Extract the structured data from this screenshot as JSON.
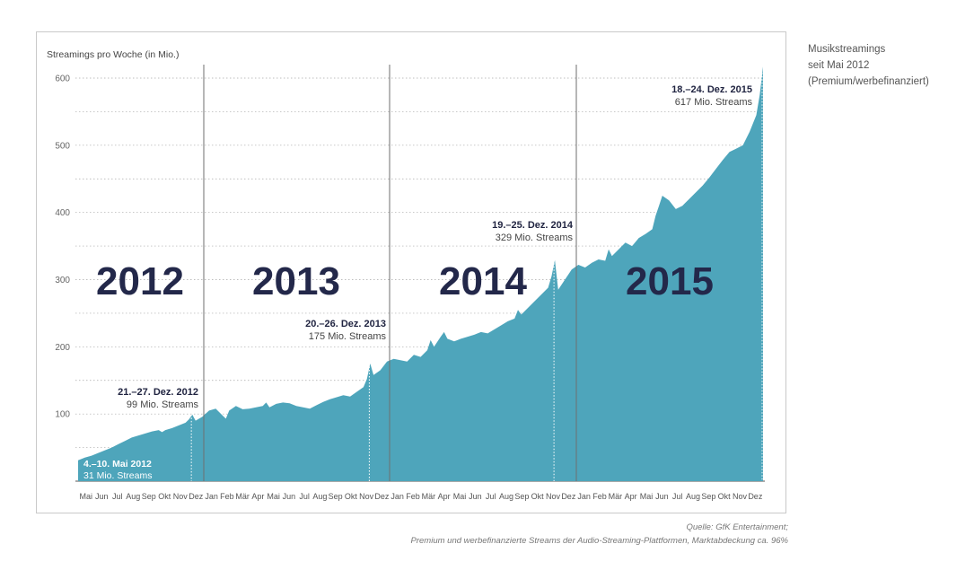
{
  "side_title": [
    "Musikstreamings",
    "seit Mai 2012",
    "(Premium/werbefinanziert)"
  ],
  "source": [
    "Quelle: GfK Entertainment;",
    "Premium und werbefinanzierte Streams der Audio-Streaming-Plattformen, Marktabdeckung ca. 96%"
  ],
  "colors": {
    "area": "#4ea5bb",
    "year_label": "#23284a",
    "frame": "#c9c9c9"
  },
  "chart_data": {
    "type": "area",
    "ylabel": "Streamings pro Woche (in Mio.)",
    "ylim": [
      0,
      620
    ],
    "yticks": [
      100,
      200,
      300,
      400,
      500,
      600
    ],
    "grid": "dotted horizontal",
    "years": [
      "2012",
      "2013",
      "2014",
      "2015"
    ],
    "month_labels": [
      [
        "Mai",
        "Jun",
        "Jul",
        "Aug",
        "Sep",
        "Okt",
        "Nov",
        "Dez"
      ],
      [
        "Jan",
        "Feb",
        "Mär",
        "Apr",
        "Mai",
        "Jun",
        "Jul",
        "Aug",
        "Sep",
        "Okt",
        "Nov",
        "Dez"
      ],
      [
        "Jan",
        "Feb",
        "Mär",
        "Apr",
        "Mai",
        "Jun",
        "Jul",
        "Aug",
        "Sep",
        "Okt",
        "Nov",
        "Dez"
      ],
      [
        "Jan",
        "Feb",
        "Mär",
        "Apr",
        "Mai",
        "Jun",
        "Jul",
        "Aug",
        "Sep",
        "Okt",
        "Nov",
        "Dez"
      ]
    ],
    "x_unit": "weeks since start of May 2012",
    "series": [
      {
        "values": [
          [
            0,
            31
          ],
          [
            2,
            35
          ],
          [
            4,
            38
          ],
          [
            6,
            42
          ],
          [
            8,
            46
          ],
          [
            10,
            50
          ],
          [
            12,
            55
          ],
          [
            14,
            60
          ],
          [
            16,
            65
          ],
          [
            18,
            68
          ],
          [
            20,
            71
          ],
          [
            22,
            74
          ],
          [
            24,
            76
          ],
          [
            25,
            73
          ],
          [
            26,
            76
          ],
          [
            28,
            79
          ],
          [
            30,
            83
          ],
          [
            32,
            87
          ],
          [
            33,
            92
          ],
          [
            34,
            99
          ],
          [
            35,
            90
          ],
          [
            37,
            96
          ],
          [
            39,
            105
          ],
          [
            41,
            108
          ],
          [
            43,
            98
          ],
          [
            44,
            93
          ],
          [
            45,
            105
          ],
          [
            47,
            112
          ],
          [
            49,
            107
          ],
          [
            51,
            108
          ],
          [
            53,
            110
          ],
          [
            55,
            112
          ],
          [
            56,
            117
          ],
          [
            57,
            110
          ],
          [
            59,
            115
          ],
          [
            61,
            117
          ],
          [
            63,
            116
          ],
          [
            65,
            112
          ],
          [
            67,
            110
          ],
          [
            69,
            108
          ],
          [
            71,
            113
          ],
          [
            73,
            118
          ],
          [
            75,
            122
          ],
          [
            77,
            125
          ],
          [
            79,
            128
          ],
          [
            81,
            126
          ],
          [
            83,
            133
          ],
          [
            85,
            140
          ],
          [
            86,
            152
          ],
          [
            87,
            175
          ],
          [
            88,
            158
          ],
          [
            90,
            165
          ],
          [
            92,
            178
          ],
          [
            94,
            182
          ],
          [
            96,
            180
          ],
          [
            98,
            178
          ],
          [
            100,
            188
          ],
          [
            102,
            185
          ],
          [
            104,
            195
          ],
          [
            105,
            210
          ],
          [
            106,
            200
          ],
          [
            108,
            215
          ],
          [
            109,
            222
          ],
          [
            110,
            212
          ],
          [
            112,
            208
          ],
          [
            114,
            212
          ],
          [
            116,
            215
          ],
          [
            118,
            218
          ],
          [
            120,
            222
          ],
          [
            122,
            220
          ],
          [
            124,
            226
          ],
          [
            126,
            232
          ],
          [
            128,
            238
          ],
          [
            130,
            242
          ],
          [
            131,
            255
          ],
          [
            132,
            248
          ],
          [
            134,
            258
          ],
          [
            136,
            268
          ],
          [
            138,
            278
          ],
          [
            140,
            288
          ],
          [
            141,
            305
          ],
          [
            142,
            329
          ],
          [
            143,
            285
          ],
          [
            145,
            300
          ],
          [
            147,
            315
          ],
          [
            149,
            322
          ],
          [
            151,
            318
          ],
          [
            153,
            325
          ],
          [
            155,
            330
          ],
          [
            157,
            328
          ],
          [
            158,
            345
          ],
          [
            159,
            335
          ],
          [
            161,
            345
          ],
          [
            163,
            355
          ],
          [
            165,
            350
          ],
          [
            167,
            362
          ],
          [
            169,
            368
          ],
          [
            171,
            375
          ],
          [
            172,
            395
          ],
          [
            173,
            410
          ],
          [
            174,
            425
          ],
          [
            176,
            418
          ],
          [
            178,
            405
          ],
          [
            180,
            410
          ],
          [
            182,
            420
          ],
          [
            184,
            430
          ],
          [
            186,
            440
          ],
          [
            188,
            452
          ],
          [
            190,
            465
          ],
          [
            192,
            478
          ],
          [
            194,
            490
          ],
          [
            196,
            495
          ],
          [
            198,
            500
          ],
          [
            200,
            520
          ],
          [
            202,
            545
          ],
          [
            203,
            575
          ],
          [
            204,
            617
          ]
        ]
      }
    ],
    "annotations": [
      {
        "date": "4.–10. Mai 2012",
        "value": "31 Mio. Streams"
      },
      {
        "date": "21.–27. Dez. 2012",
        "value": "99 Mio. Streams"
      },
      {
        "date": "20.–26. Dez. 2013",
        "value": "175 Mio. Streams"
      },
      {
        "date": "19.–25. Dez. 2014",
        "value": "329 Mio. Streams"
      },
      {
        "date": "18.–24. Dez. 2015",
        "value": "617 Mio. Streams"
      }
    ]
  }
}
